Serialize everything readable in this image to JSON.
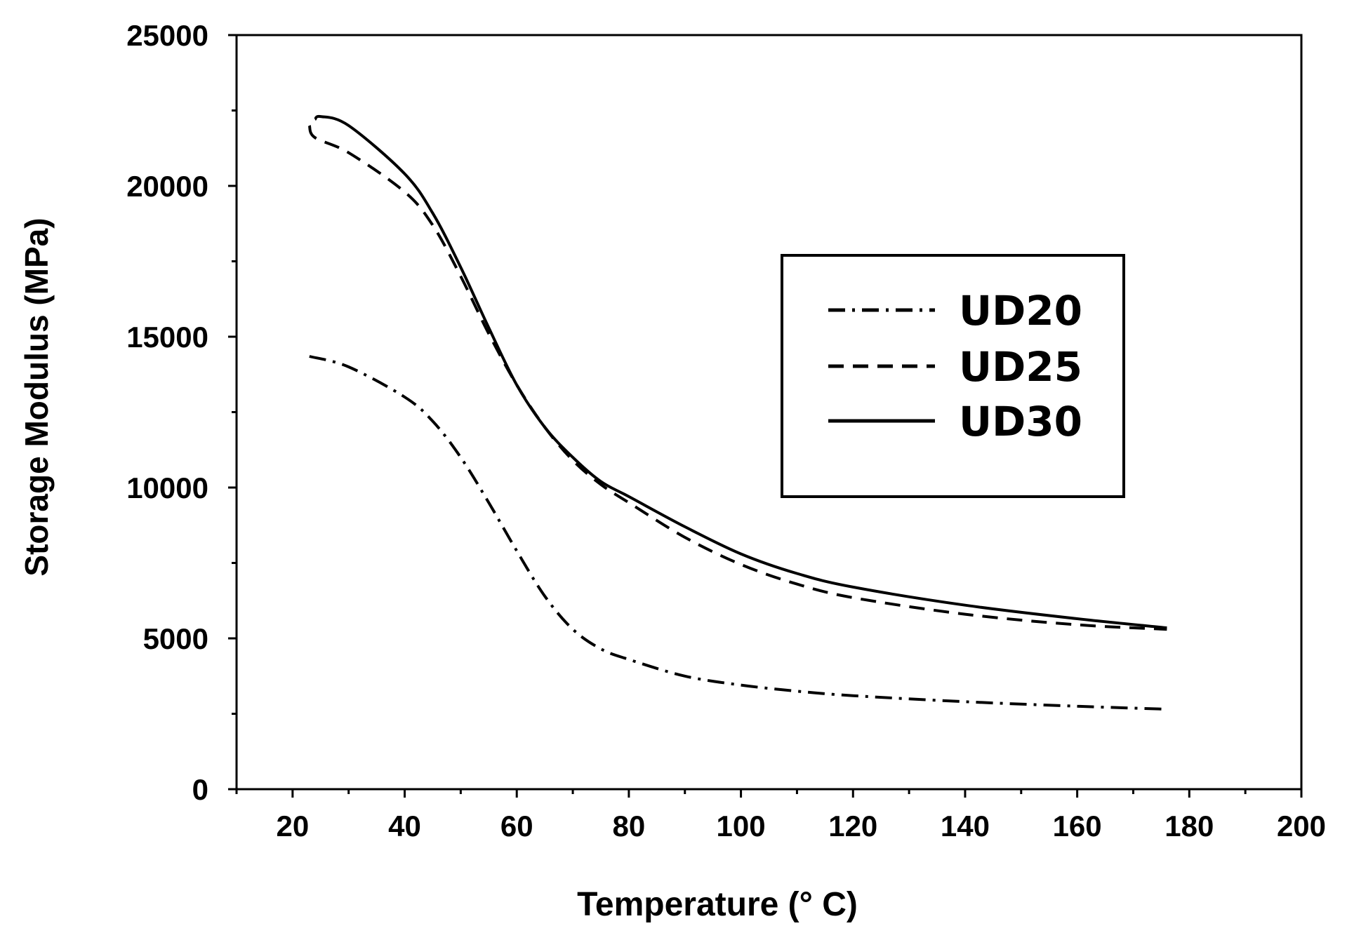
{
  "chart_data": {
    "type": "line",
    "title": "",
    "xlabel": "Temperature (° C)",
    "ylabel": "Storage Modulus (MPa)",
    "xlim": [
      10,
      200
    ],
    "ylim": [
      0,
      25000
    ],
    "xticks": [
      20,
      40,
      60,
      80,
      100,
      120,
      140,
      160,
      180,
      200
    ],
    "yticks": [
      0,
      5000,
      10000,
      15000,
      20000,
      25000
    ],
    "grid": false,
    "legend_position": "center-right",
    "series": [
      {
        "name": "UD20",
        "style": "dash-dot",
        "color": "#000000",
        "x": [
          23,
          30,
          40,
          45,
          50,
          55,
          60,
          65,
          70,
          75,
          80,
          90,
          100,
          110,
          120,
          140,
          160,
          176
        ],
        "y": [
          14350,
          14000,
          13000,
          12200,
          11000,
          9500,
          7900,
          6400,
          5300,
          4650,
          4300,
          3750,
          3450,
          3250,
          3100,
          2900,
          2750,
          2650
        ]
      },
      {
        "name": "UD25",
        "style": "dashed",
        "color": "#000000",
        "x": [
          23,
          24,
          30,
          40,
          45,
          50,
          55,
          60,
          65,
          70,
          75,
          80,
          90,
          100,
          110,
          120,
          140,
          160,
          176
        ],
        "y": [
          22000,
          21600,
          21100,
          19800,
          18700,
          17000,
          15100,
          13400,
          12000,
          10900,
          10100,
          9500,
          8350,
          7450,
          6800,
          6350,
          5800,
          5450,
          5300
        ]
      },
      {
        "name": "UD30",
        "style": "solid",
        "color": "#000000",
        "x": [
          24,
          25,
          30,
          40,
          45,
          50,
          55,
          60,
          65,
          70,
          75,
          80,
          90,
          100,
          110,
          120,
          140,
          160,
          176
        ],
        "y": [
          22200,
          22300,
          22000,
          20400,
          19100,
          17300,
          15300,
          13400,
          12000,
          11000,
          10200,
          9700,
          8700,
          7800,
          7150,
          6700,
          6100,
          5650,
          5350
        ]
      }
    ]
  }
}
